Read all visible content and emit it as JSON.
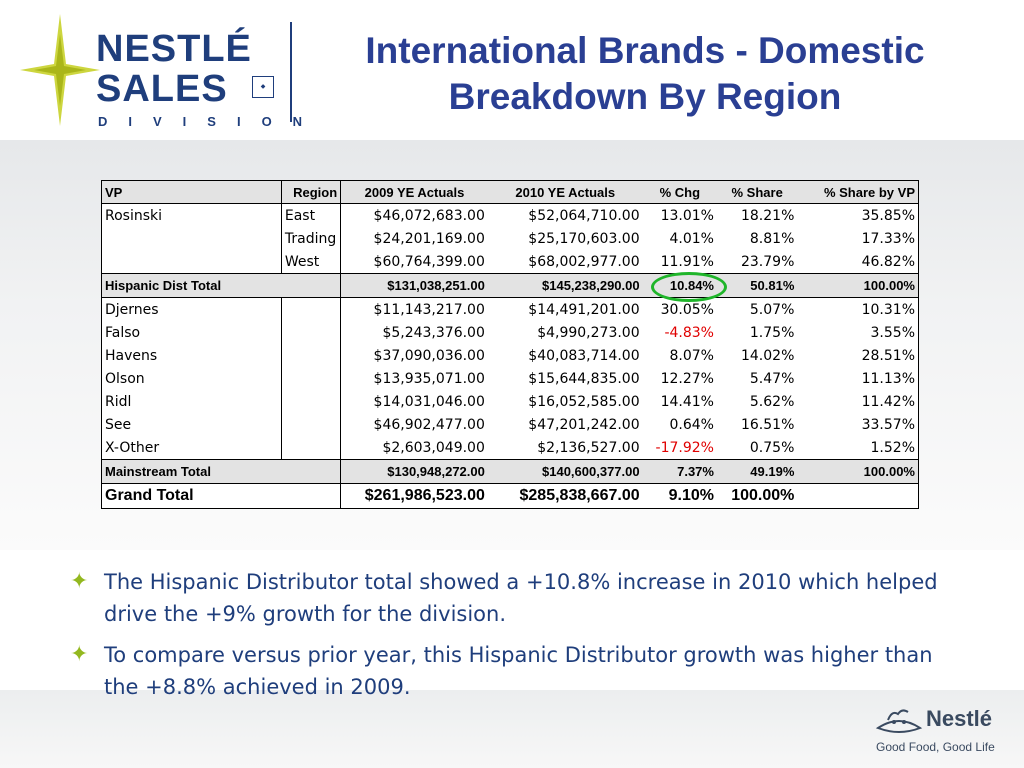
{
  "header": {
    "logo_line1": "NESTLÉ",
    "logo_line2": "SALES",
    "logo_line3": "DIVISION",
    "title_line1": "International Brands - Domestic",
    "title_line2": "Breakdown By Region"
  },
  "table": {
    "headers": {
      "vp": "VP",
      "region": "Region",
      "actual_2009": "2009 YE Actuals",
      "actual_2010": "2010 YE Actuals",
      "chg": "% Chg",
      "share": "% Share",
      "share_by_vp": "% Share by VP"
    },
    "rows": [
      {
        "vp": "Rosinski",
        "region": "East",
        "a2009": "$46,072,683.00",
        "a2010": "$52,064,710.00",
        "chg": "13.01%",
        "share": "18.21%",
        "share_vp": "35.85%"
      },
      {
        "vp": "",
        "region": "Trading",
        "a2009": "$24,201,169.00",
        "a2010": "$25,170,603.00",
        "chg": "4.01%",
        "share": "8.81%",
        "share_vp": "17.33%"
      },
      {
        "vp": "",
        "region": "West",
        "a2009": "$60,764,399.00",
        "a2010": "$68,002,977.00",
        "chg": "11.91%",
        "share": "23.79%",
        "share_vp": "46.82%"
      },
      {
        "vp": "Hispanic Dist Total",
        "region": "",
        "a2009": "$131,038,251.00",
        "a2010": "$145,238,290.00",
        "chg": "10.84%",
        "share": "50.81%",
        "share_vp": "100.00%"
      },
      {
        "vp": "Djernes",
        "region": "",
        "a2009": "$11,143,217.00",
        "a2010": "$14,491,201.00",
        "chg": "30.05%",
        "share": "5.07%",
        "share_vp": "10.31%"
      },
      {
        "vp": "Falso",
        "region": "",
        "a2009": "$5,243,376.00",
        "a2010": "$4,990,273.00",
        "chg": "-4.83%",
        "share": "1.75%",
        "share_vp": "3.55%"
      },
      {
        "vp": "Havens",
        "region": "",
        "a2009": "$37,090,036.00",
        "a2010": "$40,083,714.00",
        "chg": "8.07%",
        "share": "14.02%",
        "share_vp": "28.51%"
      },
      {
        "vp": "Olson",
        "region": "",
        "a2009": "$13,935,071.00",
        "a2010": "$15,644,835.00",
        "chg": "12.27%",
        "share": "5.47%",
        "share_vp": "11.13%"
      },
      {
        "vp": "Ridl",
        "region": "",
        "a2009": "$14,031,046.00",
        "a2010": "$16,052,585.00",
        "chg": "14.41%",
        "share": "5.62%",
        "share_vp": "11.42%"
      },
      {
        "vp": "See",
        "region": "",
        "a2009": "$46,902,477.00",
        "a2010": "$47,201,242.00",
        "chg": "0.64%",
        "share": "16.51%",
        "share_vp": "33.57%"
      },
      {
        "vp": "X-Other",
        "region": "",
        "a2009": "$2,603,049.00",
        "a2010": "$2,136,527.00",
        "chg": "-17.92%",
        "share": "0.75%",
        "share_vp": "1.52%"
      },
      {
        "vp": "Mainstream Total",
        "region": "",
        "a2009": "$130,948,272.00",
        "a2010": "$140,600,377.00",
        "chg": "7.37%",
        "share": "49.19%",
        "share_vp": "100.00%"
      },
      {
        "vp": "Grand Total",
        "region": "",
        "a2009": "$261,986,523.00",
        "a2010": "$285,838,667.00",
        "chg": "9.10%",
        "share": "100.00%",
        "share_vp": ""
      }
    ]
  },
  "bullets": [
    "The Hispanic Distributor total showed a +10.8% increase in 2010 which helped drive the +9% growth for the division.",
    "To compare versus prior year, this Hispanic Distributor growth was higher than the +8.8% achieved in 2009."
  ],
  "footer": {
    "brand": "Nestlé",
    "tagline": "Good Food, Good Life"
  },
  "colors": {
    "title": "#2a3f93",
    "logo": "#1f3e7c",
    "negative": "#e00000",
    "highlight_circle": "#1fb52a",
    "bullet_mark": "#93b81f"
  }
}
